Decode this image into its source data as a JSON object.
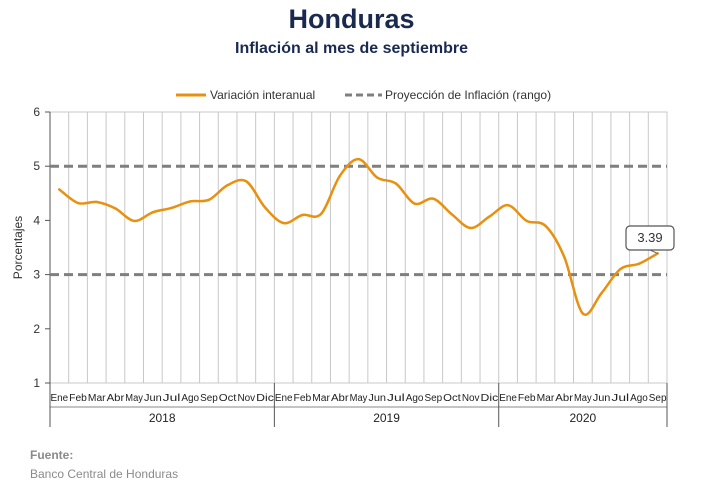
{
  "header": {
    "title": "Honduras",
    "subtitle": "Inflación al mes de septiembre"
  },
  "source": {
    "label": "Fuente:",
    "text": "Banco Central de Honduras"
  },
  "colors": {
    "series": "#e8900f",
    "band": "#7f7f7f",
    "grid": "#c8c8c8",
    "axis": "#555555",
    "title": "#1a2a4f"
  },
  "chart_data": {
    "type": "line",
    "title": "Honduras",
    "subtitle": "Inflación al mes de septiembre",
    "ylabel": "Porcentajes",
    "xlabel": "",
    "ylim": [
      1,
      6
    ],
    "yticks": [
      1,
      2,
      3,
      4,
      5,
      6
    ],
    "grid": true,
    "legend": {
      "placement": "top-center"
    },
    "years": [
      "2018",
      "2019",
      "2020"
    ],
    "categories": [
      "Ene",
      "Feb",
      "Mar",
      "Abr",
      "May",
      "Jun",
      "Jul",
      "Ago",
      "Sep",
      "Oct",
      "Nov",
      "Dic",
      "Ene",
      "Feb",
      "Mar",
      "Abr",
      "May",
      "Jun",
      "Jul",
      "Ago",
      "Sep",
      "Oct",
      "Nov",
      "Dic",
      "Ene",
      "Feb",
      "Mar",
      "Abr",
      "May",
      "Jun",
      "Jul",
      "Ago",
      "Sep"
    ],
    "series": [
      {
        "name": "Variación interanual",
        "style": "solid",
        "values": [
          4.57,
          4.32,
          4.34,
          4.22,
          3.99,
          4.15,
          4.23,
          4.35,
          4.38,
          4.65,
          4.72,
          4.24,
          3.95,
          4.1,
          4.12,
          4.82,
          5.13,
          4.79,
          4.68,
          4.31,
          4.4,
          4.11,
          3.86,
          4.07,
          4.28,
          3.99,
          3.9,
          3.33,
          2.28,
          2.66,
          3.1,
          3.2,
          3.39
        ]
      },
      {
        "name": "Proyección de Inflación (rango)",
        "style": "dashed",
        "lower": 3,
        "upper": 5
      }
    ],
    "annotation": {
      "label": "3.39",
      "category": "Sep",
      "year": "2020"
    }
  }
}
